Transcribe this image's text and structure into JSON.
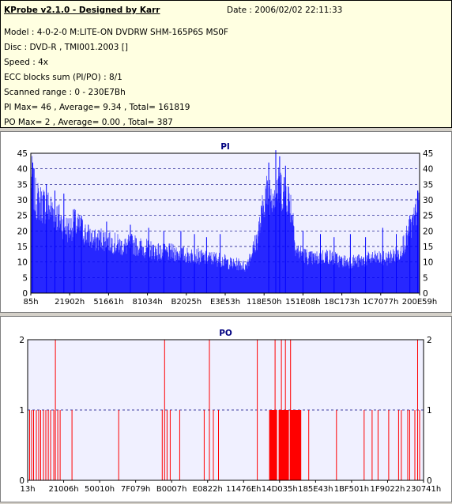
{
  "info": {
    "title": "KProbe v2.1.0 - Designed by Karr",
    "date": "Date : 2006/02/02 22:11:33",
    "model": "Model : 4-0-2-0 M:LITE-ON DVDRW SHM-165P6S MS0F",
    "disc": "Disc : DVD-R , TMI001.2003 []",
    "speed": "Speed : 4x",
    "ecc": "ECC blocks sum (PI/PO) : 8/1",
    "range": "Scanned range : 0 - 230E7Bh",
    "pi_stats": "PI Max= 46 , Average= 9.34 , Total= 161819",
    "po_stats": "PO Max= 2 , Average= 0.00 , Total= 387"
  },
  "colors": {
    "pi": "#0000ff",
    "po": "#ff0000",
    "plot_bg": "#f0f0ff",
    "title": "#000080"
  },
  "chart_data": [
    {
      "type": "bar",
      "title": "PI",
      "ylim": [
        0,
        45
      ],
      "yticks": [
        "0",
        "5",
        "10",
        "15",
        "20",
        "25",
        "30",
        "35",
        "40",
        "45"
      ],
      "xticks": [
        "85h",
        "21902h",
        "51661h",
        "81034h",
        "B2025h",
        "E3E53h",
        "118E50h",
        "151E08h",
        "18C173h",
        "1C7077h",
        "200E59h"
      ],
      "segments": [
        {
          "from": 0.0,
          "to": 0.01,
          "values": [
            41,
            35
          ]
        },
        {
          "from": 0.01,
          "to": 0.06,
          "values": [
            33,
            31,
            30,
            28
          ]
        },
        {
          "from": 0.06,
          "to": 0.13,
          "values": [
            28,
            25,
            22,
            24,
            22
          ]
        },
        {
          "from": 0.13,
          "to": 0.2,
          "values": [
            22,
            20,
            18,
            19,
            18
          ]
        },
        {
          "from": 0.2,
          "to": 0.28,
          "values": [
            18,
            17,
            16,
            17,
            16
          ]
        },
        {
          "from": 0.28,
          "to": 0.4,
          "values": [
            16,
            15,
            14,
            14,
            13
          ]
        },
        {
          "from": 0.4,
          "to": 0.5,
          "values": [
            13,
            13,
            12,
            12,
            11
          ]
        },
        {
          "from": 0.5,
          "to": 0.555,
          "values": [
            11,
            10,
            10,
            9
          ]
        },
        {
          "from": 0.555,
          "to": 0.585,
          "values": [
            10,
            13,
            16,
            20
          ]
        },
        {
          "from": 0.585,
          "to": 0.6,
          "values": [
            21,
            25,
            32
          ]
        },
        {
          "from": 0.6,
          "to": 0.66,
          "values": [
            33,
            35,
            36,
            36,
            35
          ]
        },
        {
          "from": 0.66,
          "to": 0.68,
          "values": [
            34,
            30,
            22
          ]
        },
        {
          "from": 0.68,
          "to": 0.72,
          "values": [
            15,
            14,
            13,
            12
          ]
        },
        {
          "from": 0.72,
          "to": 0.8,
          "values": [
            12,
            12,
            13,
            12,
            11
          ]
        },
        {
          "from": 0.8,
          "to": 0.9,
          "values": [
            11,
            11,
            11,
            12,
            12
          ]
        },
        {
          "from": 0.9,
          "to": 0.95,
          "values": [
            12,
            12,
            13,
            14
          ]
        },
        {
          "from": 0.95,
          "to": 0.99,
          "values": [
            15,
            18,
            22,
            26
          ]
        },
        {
          "from": 0.99,
          "to": 1.0,
          "values": [
            28,
            30
          ]
        }
      ],
      "spikes": [
        {
          "x": 0.005,
          "v": 42
        },
        {
          "x": 0.04,
          "v": 35
        },
        {
          "x": 0.062,
          "v": 33
        },
        {
          "x": 0.085,
          "v": 32
        },
        {
          "x": 0.112,
          "v": 27
        },
        {
          "x": 0.13,
          "v": 25
        },
        {
          "x": 0.195,
          "v": 23
        },
        {
          "x": 0.256,
          "v": 22
        },
        {
          "x": 0.303,
          "v": 21
        },
        {
          "x": 0.342,
          "v": 20
        },
        {
          "x": 0.386,
          "v": 20
        },
        {
          "x": 0.421,
          "v": 19
        },
        {
          "x": 0.452,
          "v": 18
        },
        {
          "x": 0.487,
          "v": 19
        },
        {
          "x": 0.612,
          "v": 42
        },
        {
          "x": 0.63,
          "v": 46
        },
        {
          "x": 0.64,
          "v": 44
        },
        {
          "x": 0.655,
          "v": 41
        },
        {
          "x": 0.7,
          "v": 20
        },
        {
          "x": 0.745,
          "v": 19
        },
        {
          "x": 0.78,
          "v": 18
        },
        {
          "x": 0.822,
          "v": 19
        },
        {
          "x": 0.861,
          "v": 18
        },
        {
          "x": 0.905,
          "v": 21
        },
        {
          "x": 0.94,
          "v": 19
        },
        {
          "x": 0.975,
          "v": 25
        },
        {
          "x": 0.995,
          "v": 33
        }
      ]
    },
    {
      "type": "bar",
      "title": "PO",
      "ylim": [
        0,
        2
      ],
      "yticks": [
        "0",
        "1",
        "2"
      ],
      "xticks": [
        "13h",
        "21006h",
        "50010h",
        "7F079h",
        "B0007h",
        "E0822h",
        "11476Eh",
        "14D035h",
        "185E43h",
        "1BF501h",
        "1F9022h",
        "230741h"
      ],
      "bars": [
        {
          "x": 0.005,
          "v": 1
        },
        {
          "x": 0.01,
          "v": 1
        },
        {
          "x": 0.015,
          "v": 1
        },
        {
          "x": 0.022,
          "v": 1
        },
        {
          "x": 0.028,
          "v": 1
        },
        {
          "x": 0.033,
          "v": 1
        },
        {
          "x": 0.04,
          "v": 1
        },
        {
          "x": 0.046,
          "v": 1
        },
        {
          "x": 0.052,
          "v": 1
        },
        {
          "x": 0.058,
          "v": 1
        },
        {
          "x": 0.066,
          "v": 1
        },
        {
          "x": 0.07,
          "v": 2
        },
        {
          "x": 0.076,
          "v": 1
        },
        {
          "x": 0.082,
          "v": 1
        },
        {
          "x": 0.112,
          "v": 1
        },
        {
          "x": 0.23,
          "v": 1
        },
        {
          "x": 0.34,
          "v": 1
        },
        {
          "x": 0.346,
          "v": 2
        },
        {
          "x": 0.352,
          "v": 1
        },
        {
          "x": 0.36,
          "v": 1
        },
        {
          "x": 0.384,
          "v": 1
        },
        {
          "x": 0.446,
          "v": 1
        },
        {
          "x": 0.459,
          "v": 2
        },
        {
          "x": 0.469,
          "v": 1
        },
        {
          "x": 0.482,
          "v": 1
        },
        {
          "x": 0.58,
          "v": 2
        },
        {
          "x": 0.625,
          "v": 2
        },
        {
          "x": 0.641,
          "v": 2
        },
        {
          "x": 0.651,
          "v": 2
        },
        {
          "x": 0.664,
          "v": 2
        },
        {
          "x": 0.69,
          "v": 1
        },
        {
          "x": 0.71,
          "v": 1
        },
        {
          "x": 0.78,
          "v": 1
        },
        {
          "x": 0.85,
          "v": 1
        },
        {
          "x": 0.87,
          "v": 1
        },
        {
          "x": 0.885,
          "v": 1
        },
        {
          "x": 0.912,
          "v": 1
        },
        {
          "x": 0.937,
          "v": 1
        },
        {
          "x": 0.944,
          "v": 1
        },
        {
          "x": 0.96,
          "v": 1
        },
        {
          "x": 0.965,
          "v": 1
        },
        {
          "x": 0.978,
          "v": 1
        },
        {
          "x": 0.985,
          "v": 2
        },
        {
          "x": 0.99,
          "v": 1
        }
      ],
      "blocks": [
        {
          "from": 0.61,
          "to": 0.63,
          "v": 1
        },
        {
          "from": 0.634,
          "to": 0.66,
          "v": 1
        },
        {
          "from": 0.662,
          "to": 0.69,
          "v": 1
        }
      ]
    }
  ]
}
